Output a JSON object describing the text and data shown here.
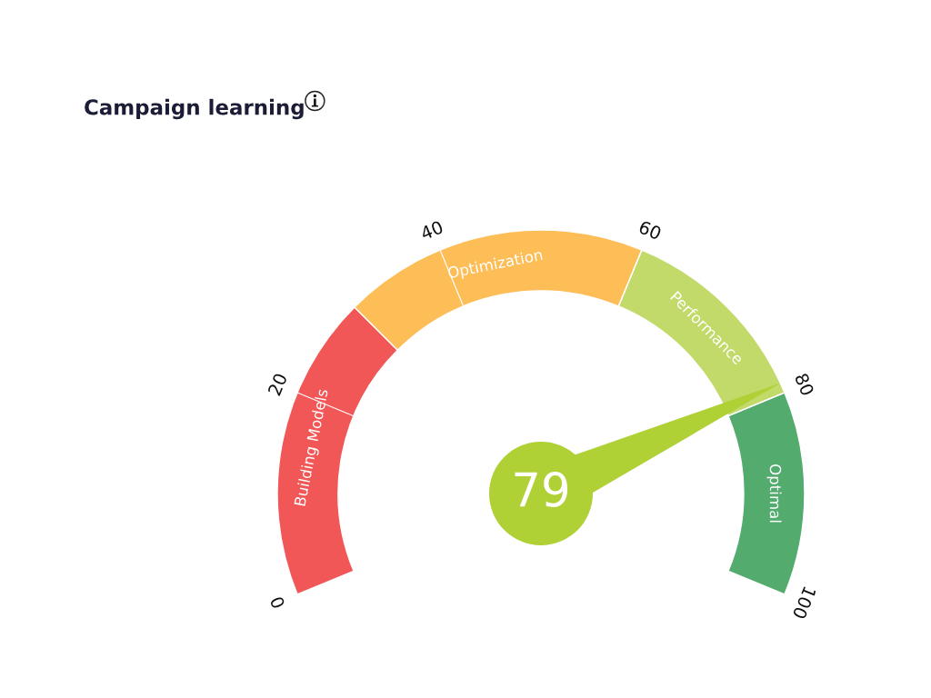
{
  "chart_data": {
    "type": "donut",
    "title": "Campaign learning",
    "categories": [
      "Building Models",
      "Optimization",
      "Performance",
      "Optimal"
    ],
    "values": [
      30,
      30,
      20,
      20
    ],
    "colors": [
      "#f25757",
      "#fdbe58",
      "#c1da69",
      "#53ab6e"
    ],
    "needle": "Performance",
    "annotations": [
      "0",
      "20",
      "40",
      "60",
      "80",
      "100",
      "79"
    ]
  }
}
